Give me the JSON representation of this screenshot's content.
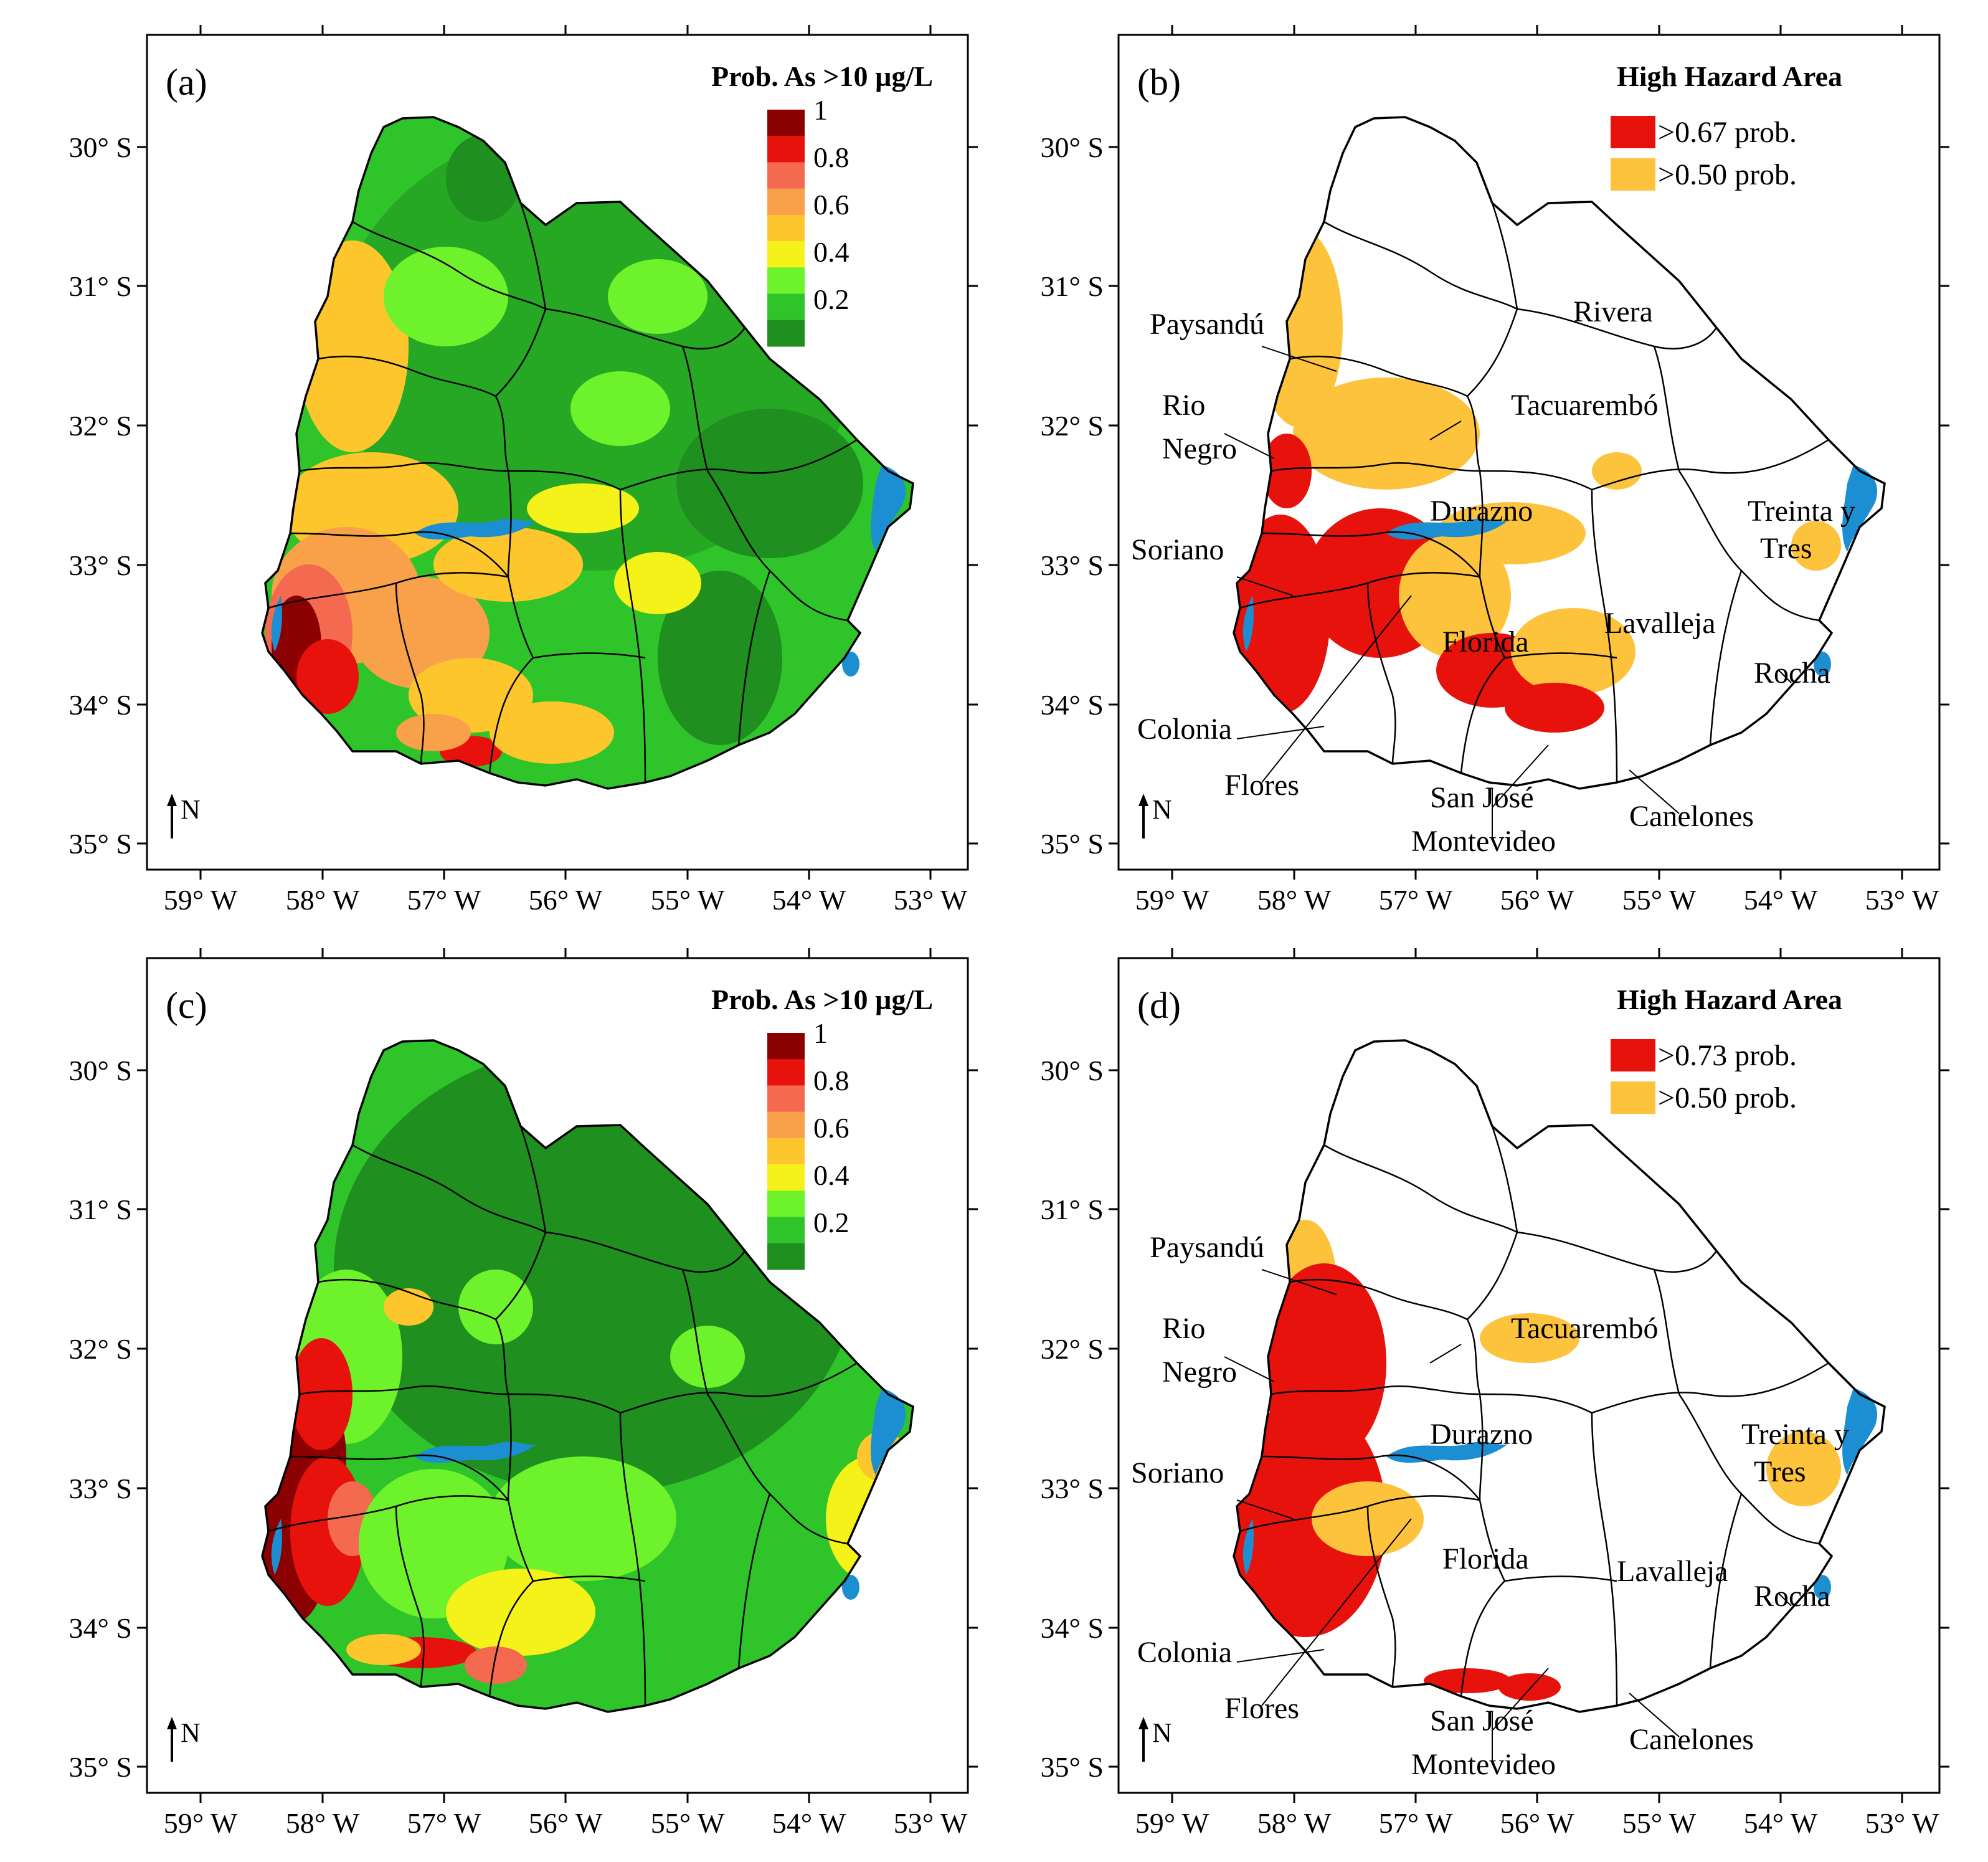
{
  "figure": {
    "axes": {
      "lat_ticks": [
        "30° S",
        "31° S",
        "32° S",
        "33° S",
        "34° S",
        "35° S"
      ],
      "lon_ticks": [
        "59° W",
        "58° W",
        "57° W",
        "56° W",
        "55° W",
        "54° W",
        "53° W"
      ],
      "north_label": "N"
    },
    "panels": [
      {
        "id": "a",
        "label": "(a)",
        "kind": "probability",
        "legend_title": "Prob. As >10 µg/L",
        "colorbar": {
          "tick_labels": [
            "1",
            "0.8",
            "0.6",
            "0.4",
            "0.2"
          ],
          "tick_values": [
            1,
            0.8,
            0.6,
            0.4,
            0.2
          ],
          "colors": [
            "#8b0000",
            "#e8120c",
            "#f36a50",
            "#f9a04a",
            "#fdc62d",
            "#f5f21a",
            "#6ef22b",
            "#2fc52a",
            "#1f8f1f"
          ]
        }
      },
      {
        "id": "b",
        "label": "(b)",
        "kind": "hazard",
        "legend_title": "High Hazard Area",
        "legend_items": [
          {
            "label": ">0.67 prob.",
            "color": "#e8120c"
          },
          {
            "label": ">0.50 prob.",
            "color": "#fdc33c"
          }
        ],
        "departments": [
          "Paysandú",
          "Rivera",
          "Rio",
          "Negro",
          "Tacuarembó",
          "Durazno",
          "Treinta y",
          "Tres",
          "Soriano",
          "Lavalleja",
          "Florida",
          "Rocha",
          "Colonia",
          "Flores",
          "San José",
          "Canelones",
          "Montevideo"
        ]
      },
      {
        "id": "c",
        "label": "(c)",
        "kind": "probability",
        "legend_title": "Prob. As >10 µg/L",
        "colorbar": {
          "tick_labels": [
            "1",
            "0.8",
            "0.6",
            "0.4",
            "0.2"
          ],
          "tick_values": [
            1,
            0.8,
            0.6,
            0.4,
            0.2
          ],
          "colors": [
            "#8b0000",
            "#e8120c",
            "#f36a50",
            "#f9a04a",
            "#fdc62d",
            "#f5f21a",
            "#6ef22b",
            "#2fc52a",
            "#1f8f1f"
          ]
        }
      },
      {
        "id": "d",
        "label": "(d)",
        "kind": "hazard",
        "legend_title": "High Hazard Area",
        "legend_items": [
          {
            "label": ">0.73 prob.",
            "color": "#e8120c"
          },
          {
            "label": ">0.50 prob.",
            "color": "#fdc33c"
          }
        ],
        "departments": [
          "Paysandú",
          "Tacuarembó",
          "Rio",
          "Negro",
          "Durazno",
          "Treinta y",
          "Tres",
          "Soriano",
          "Florida",
          "Lavalleja",
          "Rocha",
          "Colonia",
          "Flores",
          "San José",
          "Canelones",
          "Montevideo"
        ]
      }
    ]
  }
}
